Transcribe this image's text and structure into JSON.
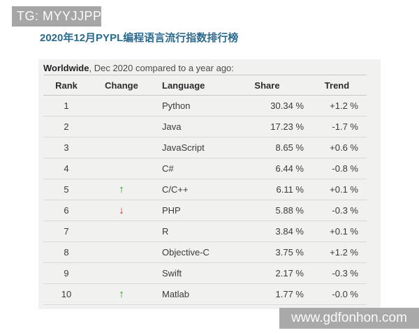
{
  "watermarks": {
    "top_left": "TG: MYYJJPP",
    "bottom_right": "www.gdfonhon.com"
  },
  "page": {
    "title": "2020年12月PYPL编程语言流行指数排行榜",
    "subtitle_bold": "Worldwide",
    "subtitle_rest": ", Dec 2020 compared to a year ago:"
  },
  "icons": {
    "up_arrow": "↑",
    "down_arrow": "↓"
  },
  "colors": {
    "title_blue": "#2a6a8e",
    "arrow_up_green": "#1e9b1e",
    "arrow_down_red": "#c02323",
    "watermark_gray": "#a6a6a6",
    "panel_gray": "#f1f1f0"
  },
  "table": {
    "columns": [
      "Rank",
      "Change",
      "Language",
      "Share",
      "Trend"
    ],
    "rows": [
      {
        "rank": "1",
        "change": "",
        "language": "Python",
        "share": "30.34 %",
        "trend": "+1.2 %"
      },
      {
        "rank": "2",
        "change": "",
        "language": "Java",
        "share": "17.23 %",
        "trend": "-1.7 %"
      },
      {
        "rank": "3",
        "change": "",
        "language": "JavaScript",
        "share": "8.65 %",
        "trend": "+0.6 %"
      },
      {
        "rank": "4",
        "change": "",
        "language": "C#",
        "share": "6.44 %",
        "trend": "-0.8 %"
      },
      {
        "rank": "5",
        "change": "up",
        "language": "C/C++",
        "share": "6.11 %",
        "trend": "+0.1 %"
      },
      {
        "rank": "6",
        "change": "down",
        "language": "PHP",
        "share": "5.88 %",
        "trend": "-0.3 %"
      },
      {
        "rank": "7",
        "change": "",
        "language": "R",
        "share": "3.84 %",
        "trend": "+0.1 %"
      },
      {
        "rank": "8",
        "change": "",
        "language": "Objective-C",
        "share": "3.75 %",
        "trend": "+1.2 %"
      },
      {
        "rank": "9",
        "change": "",
        "language": "Swift",
        "share": "2.17 %",
        "trend": "-0.3 %"
      },
      {
        "rank": "10",
        "change": "up",
        "language": "Matlab",
        "share": "1.77 %",
        "trend": "-0.0 %"
      }
    ]
  }
}
